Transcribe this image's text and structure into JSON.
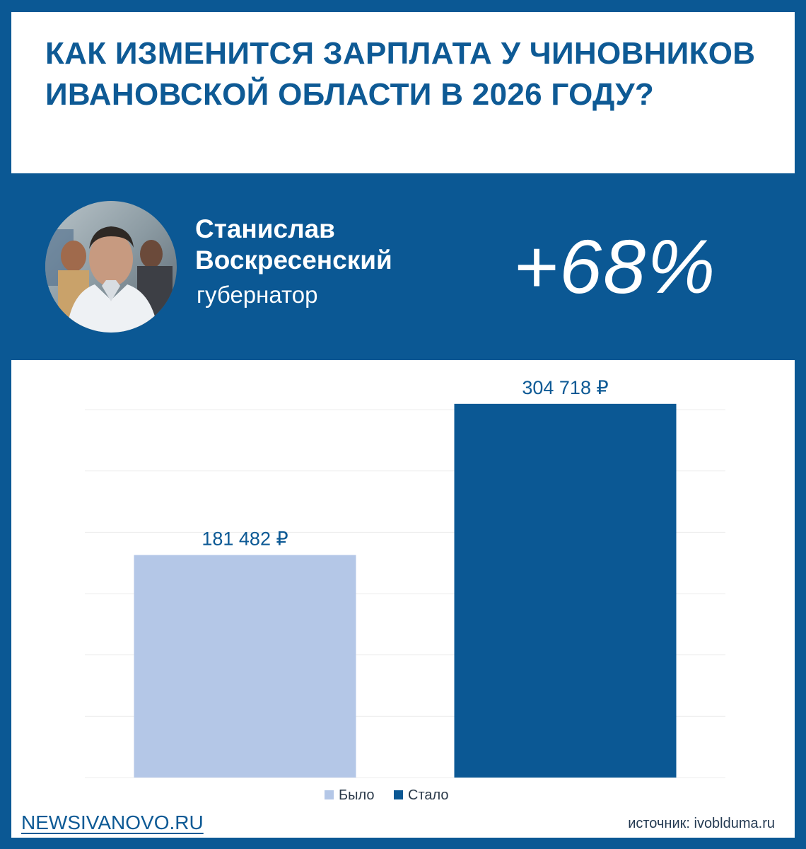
{
  "title": "КАК ИЗМЕНИТСЯ ЗАРПЛАТА У ЧИНОВНИКОВ ИВАНОВСКОЙ ОБЛАСТИ В 2026 ГОДУ?",
  "person": {
    "name_line1": "Станислав",
    "name_line2": "Воскресенский",
    "role": "губернатор",
    "photo": "portrait-photo"
  },
  "change_percent": "+68%",
  "chart_data": {
    "type": "bar",
    "categories": [
      "Было",
      "Стало"
    ],
    "values": [
      181482,
      304718
    ],
    "value_labels": [
      "181 482 ₽",
      "304 718 ₽"
    ],
    "colors": [
      "#b4c7e7",
      "#0b5894"
    ],
    "legend": [
      "Было",
      "Стало"
    ],
    "legend_position": "bottom",
    "ylim": [
      0,
      300000
    ],
    "grid": true
  },
  "footer": {
    "brand": "NEWSIVANOVO.RU",
    "source": "источник: ivoblduma.ru"
  },
  "colors": {
    "brand_blue": "#0b5894",
    "light_bar": "#b4c7e7",
    "text_blue": "#0e5a95"
  }
}
